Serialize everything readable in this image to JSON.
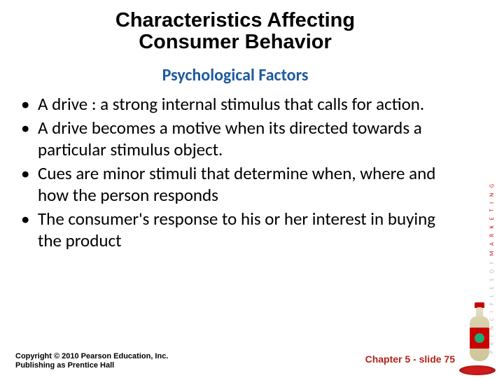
{
  "title_line1": "Characteristics Affecting",
  "title_line2": "Consumer Behavior",
  "subtitle": "Psychological Factors",
  "subtitle_color": "#1f5aa0",
  "bullets": [
    "A drive : a strong internal stimulus that calls for action.",
    "A drive becomes a motive when its directed towards a particular stimulus object.",
    "Cues are minor stimuli that determine when, where and how the person responds",
    "The consumer's response to his or her interest in buying the product"
  ],
  "copyright_line1": "Copyright © 2010 Pearson Education, Inc.",
  "copyright_line2": "Publishing as Prentice Hall",
  "pager": "Chapter 5 - slide 75",
  "accent_color": "#b02318",
  "sidebar_text_pre": "P R I N C I P L E S  O F",
  "sidebar_text_main": "M A R K E T I N G"
}
